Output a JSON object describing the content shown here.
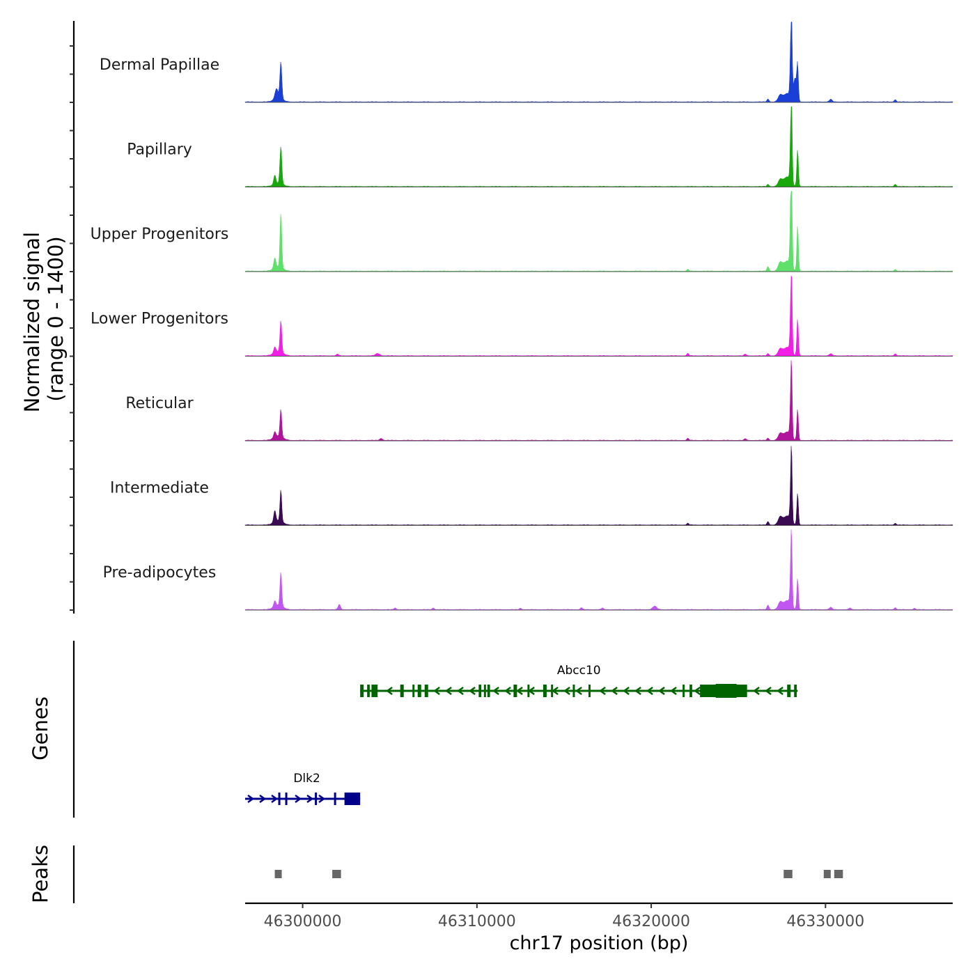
{
  "chart_data": {
    "type": "coverage",
    "chromosome": "chr17",
    "x_range": [
      46296700,
      46337300
    ],
    "xlabel": "chr17 position (bp)",
    "x_ticks": [
      46300000,
      46310000,
      46320000,
      46330000
    ],
    "x_tick_labels": [
      "46300000",
      "46310000",
      "46320000",
      "46330000"
    ],
    "coverage_ylabel": "Normalized signal\n(range 0 - 1400)",
    "coverage_ylabel_lines": [
      "Normalized signal",
      "(range 0 - 1400)"
    ],
    "y_range": [
      0,
      1400
    ],
    "genes_ylabel": "Genes",
    "peaks_ylabel": "Peaks",
    "tracks": [
      {
        "name": "Dermal Papillae",
        "color": "#1a3fd6",
        "peaks": [
          [
            46298500,
            180,
            90
          ],
          [
            46298750,
            650,
            55
          ],
          [
            46298600,
            60,
            250
          ],
          [
            46327400,
            110,
            120
          ],
          [
            46327800,
            150,
            200
          ],
          [
            46328000,
            560,
            45
          ],
          [
            46328050,
            1300,
            40
          ],
          [
            46328250,
            400,
            90
          ],
          [
            46328400,
            600,
            45
          ],
          [
            46326700,
            50,
            60
          ],
          [
            46330300,
            45,
            80
          ],
          [
            46334000,
            40,
            60
          ]
        ]
      },
      {
        "name": "Papillary",
        "color": "#18a80c",
        "peaks": [
          [
            46298400,
            160,
            60
          ],
          [
            46298750,
            650,
            55
          ],
          [
            46298600,
            60,
            250
          ],
          [
            46327400,
            110,
            120
          ],
          [
            46327800,
            170,
            200
          ],
          [
            46328050,
            1300,
            40
          ],
          [
            46328000,
            500,
            45
          ],
          [
            46328400,
            650,
            45
          ],
          [
            46326700,
            40,
            60
          ],
          [
            46334000,
            40,
            60
          ]
        ]
      },
      {
        "name": "Upper Progenitors",
        "color": "#5fe06a",
        "peaks": [
          [
            46298400,
            180,
            60
          ],
          [
            46298750,
            950,
            50
          ],
          [
            46298600,
            80,
            250
          ],
          [
            46327400,
            140,
            120
          ],
          [
            46327800,
            180,
            200
          ],
          [
            46328050,
            1500,
            40
          ],
          [
            46328000,
            700,
            45
          ],
          [
            46328400,
            800,
            45
          ],
          [
            46326700,
            80,
            60
          ],
          [
            46322100,
            30,
            60
          ],
          [
            46334000,
            30,
            60
          ]
        ]
      },
      {
        "name": "Lower Progenitors",
        "color": "#f21ee6",
        "peaks": [
          [
            46298400,
            100,
            60
          ],
          [
            46298750,
            550,
            50
          ],
          [
            46298600,
            80,
            250
          ],
          [
            46327400,
            110,
            120
          ],
          [
            46327800,
            150,
            200
          ],
          [
            46328050,
            1300,
            40
          ],
          [
            46328000,
            450,
            45
          ],
          [
            46328400,
            650,
            45
          ],
          [
            46326700,
            40,
            60
          ],
          [
            46302000,
            30,
            60
          ],
          [
            46304300,
            40,
            120
          ],
          [
            46322100,
            40,
            60
          ],
          [
            46325400,
            30,
            60
          ],
          [
            46330300,
            35,
            80
          ],
          [
            46334000,
            35,
            60
          ]
        ]
      },
      {
        "name": "Reticular",
        "color": "#b0149c",
        "peaks": [
          [
            46298400,
            100,
            60
          ],
          [
            46298750,
            480,
            50
          ],
          [
            46298600,
            80,
            250
          ],
          [
            46327400,
            110,
            120
          ],
          [
            46327800,
            150,
            200
          ],
          [
            46328050,
            1150,
            40
          ],
          [
            46328000,
            420,
            45
          ],
          [
            46328400,
            550,
            45
          ],
          [
            46326700,
            40,
            60
          ],
          [
            46304500,
            35,
            80
          ],
          [
            46322100,
            35,
            60
          ],
          [
            46325400,
            30,
            60
          ]
        ]
      },
      {
        "name": "Intermediate",
        "color": "#3a0a52",
        "peaks": [
          [
            46298400,
            200,
            60
          ],
          [
            46298750,
            550,
            50
          ],
          [
            46298600,
            80,
            250
          ],
          [
            46327400,
            130,
            120
          ],
          [
            46327800,
            160,
            200
          ],
          [
            46328050,
            1150,
            40
          ],
          [
            46328000,
            350,
            45
          ],
          [
            46328400,
            560,
            45
          ],
          [
            46326700,
            60,
            60
          ],
          [
            46322100,
            30,
            60
          ],
          [
            46334000,
            30,
            60
          ]
        ]
      },
      {
        "name": "Pre-adipocytes",
        "color": "#c256f2",
        "peaks": [
          [
            46298400,
            100,
            60
          ],
          [
            46298750,
            590,
            50
          ],
          [
            46298600,
            80,
            250
          ],
          [
            46302100,
            90,
            70
          ],
          [
            46327400,
            120,
            120
          ],
          [
            46327800,
            160,
            200
          ],
          [
            46328050,
            1150,
            40
          ],
          [
            46328000,
            380,
            45
          ],
          [
            46328400,
            550,
            45
          ],
          [
            46326700,
            80,
            60
          ],
          [
            46320200,
            60,
            120
          ],
          [
            46305300,
            30,
            60
          ],
          [
            46307500,
            30,
            60
          ],
          [
            46312500,
            25,
            60
          ],
          [
            46316000,
            35,
            60
          ],
          [
            46317200,
            30,
            60
          ],
          [
            46330300,
            40,
            80
          ],
          [
            46331400,
            30,
            60
          ],
          [
            46334000,
            35,
            60
          ],
          [
            46335100,
            25,
            60
          ]
        ]
      }
    ],
    "genes": [
      {
        "name": "Abcc10",
        "strand": "-",
        "color": "#006400",
        "start": 46303300,
        "end": 46328400,
        "exons": [
          [
            46303300,
            46303500
          ],
          [
            46303700,
            46303850
          ],
          [
            46303950,
            46304300
          ],
          [
            46305600,
            46305800
          ],
          [
            46306300,
            46306400
          ],
          [
            46306600,
            46306800
          ],
          [
            46307000,
            46307200
          ],
          [
            46310100,
            46310250
          ],
          [
            46310400,
            46310500
          ],
          [
            46310600,
            46310750
          ],
          [
            46312100,
            46312300
          ],
          [
            46312900,
            46313000
          ],
          [
            46313800,
            46314000
          ],
          [
            46314250,
            46314350
          ],
          [
            46315500,
            46315600
          ],
          [
            46316400,
            46316500
          ],
          [
            46321800,
            46321900
          ],
          [
            46322200,
            46322350
          ],
          [
            46322800,
            46325500
          ],
          [
            46327800,
            46328000
          ],
          [
            46328200,
            46328350
          ]
        ],
        "thick_exons": [
          [
            46323700,
            46324900
          ]
        ]
      },
      {
        "name": "Dlk2",
        "strand": "+",
        "color": "#00008b",
        "start": 46296700,
        "end": 46303300,
        "exons": [
          [
            46298600,
            46298700
          ],
          [
            46299000,
            46299100
          ],
          [
            46300700,
            46300800
          ],
          [
            46301800,
            46301900
          ],
          [
            46302400,
            46303300
          ]
        ],
        "thick_exons": []
      }
    ],
    "peaks": [
      [
        46298400,
        46298800
      ],
      [
        46301700,
        46302200
      ],
      [
        46327600,
        46328100
      ],
      [
        46329900,
        46330300
      ],
      [
        46330500,
        46331000
      ]
    ]
  }
}
